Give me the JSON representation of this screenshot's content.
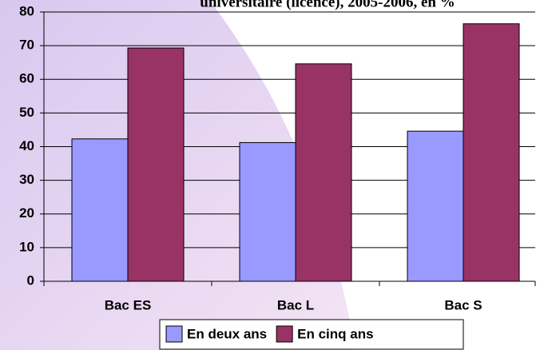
{
  "chart_data": {
    "type": "bar",
    "title": "universitaire (licence),  2005-2006, en %",
    "categories": [
      "Bac ES",
      "Bac L",
      "Bac S"
    ],
    "series": [
      {
        "name": "En deux ans",
        "color": "#9999ff",
        "values": [
          42.3,
          41.2,
          44.6
        ]
      },
      {
        "name": "En cinq ans",
        "color": "#993366",
        "values": [
          69.3,
          64.6,
          76.5
        ]
      }
    ],
    "ylim": [
      0,
      80
    ],
    "yticks": [
      0,
      10,
      20,
      30,
      40,
      50,
      60,
      70,
      80
    ],
    "grid": true,
    "legend": "bottom"
  }
}
